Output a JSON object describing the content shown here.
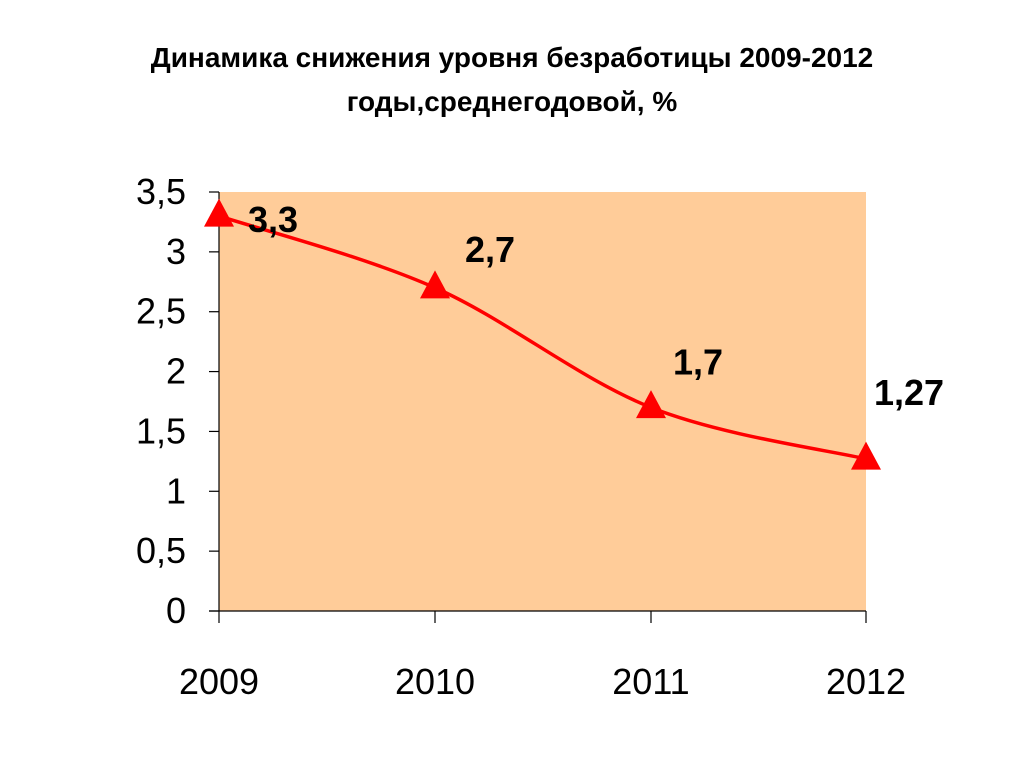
{
  "chart_data": {
    "type": "line",
    "title_line1": "Динамика снижения уровня безработицы 2009-2012",
    "title_line2": "годы,среднегодовой, %",
    "categories": [
      "2009",
      "2010",
      "2011",
      "2012"
    ],
    "series": [
      {
        "values": [
          3.3,
          2.7,
          1.7,
          1.27
        ],
        "labels": [
          "3,3",
          "2,7",
          "1,7",
          "1,27"
        ]
      }
    ],
    "ylim": [
      0,
      3.5
    ],
    "yticks": [
      0,
      0.5,
      1,
      1.5,
      2,
      2.5,
      3,
      3.5
    ],
    "ytick_labels": [
      "0",
      "0,5",
      "1",
      "1,5",
      "2",
      "2,5",
      "3",
      "3,5"
    ],
    "smooth": true,
    "grid": false,
    "legend": "none",
    "marker": "triangle",
    "colors": {
      "line": "#ff0000",
      "plot_background": "#ffcc99",
      "axis": "#000000"
    }
  }
}
